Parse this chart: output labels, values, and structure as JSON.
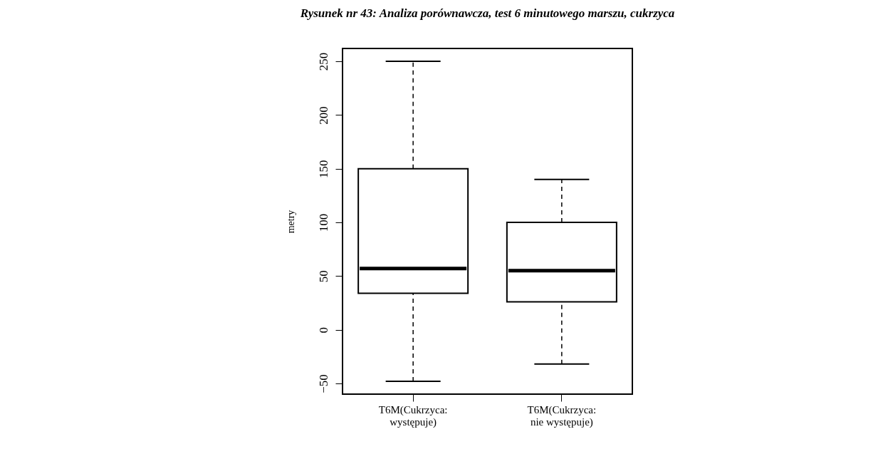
{
  "chart_data": {
    "type": "box",
    "title": "Rysunek nr 43: Analiza porównawcza, test 6 minutowego marszu, cukrzyca",
    "ylabel": "metry",
    "categories": [
      "T6M(Cukrzyca:\nwystępuje)",
      "T6M(Cukrzyca:\nnie występuje)"
    ],
    "boxes": [
      {
        "low": -48,
        "q1": 34,
        "median": 57,
        "q3": 150,
        "high": 250
      },
      {
        "low": -32,
        "q1": 26,
        "median": 55,
        "q3": 100,
        "high": 140
      }
    ],
    "ylim": [
      -60,
      262
    ],
    "yticks": [
      -50,
      0,
      50,
      100,
      150,
      200,
      250
    ],
    "grid": false
  }
}
